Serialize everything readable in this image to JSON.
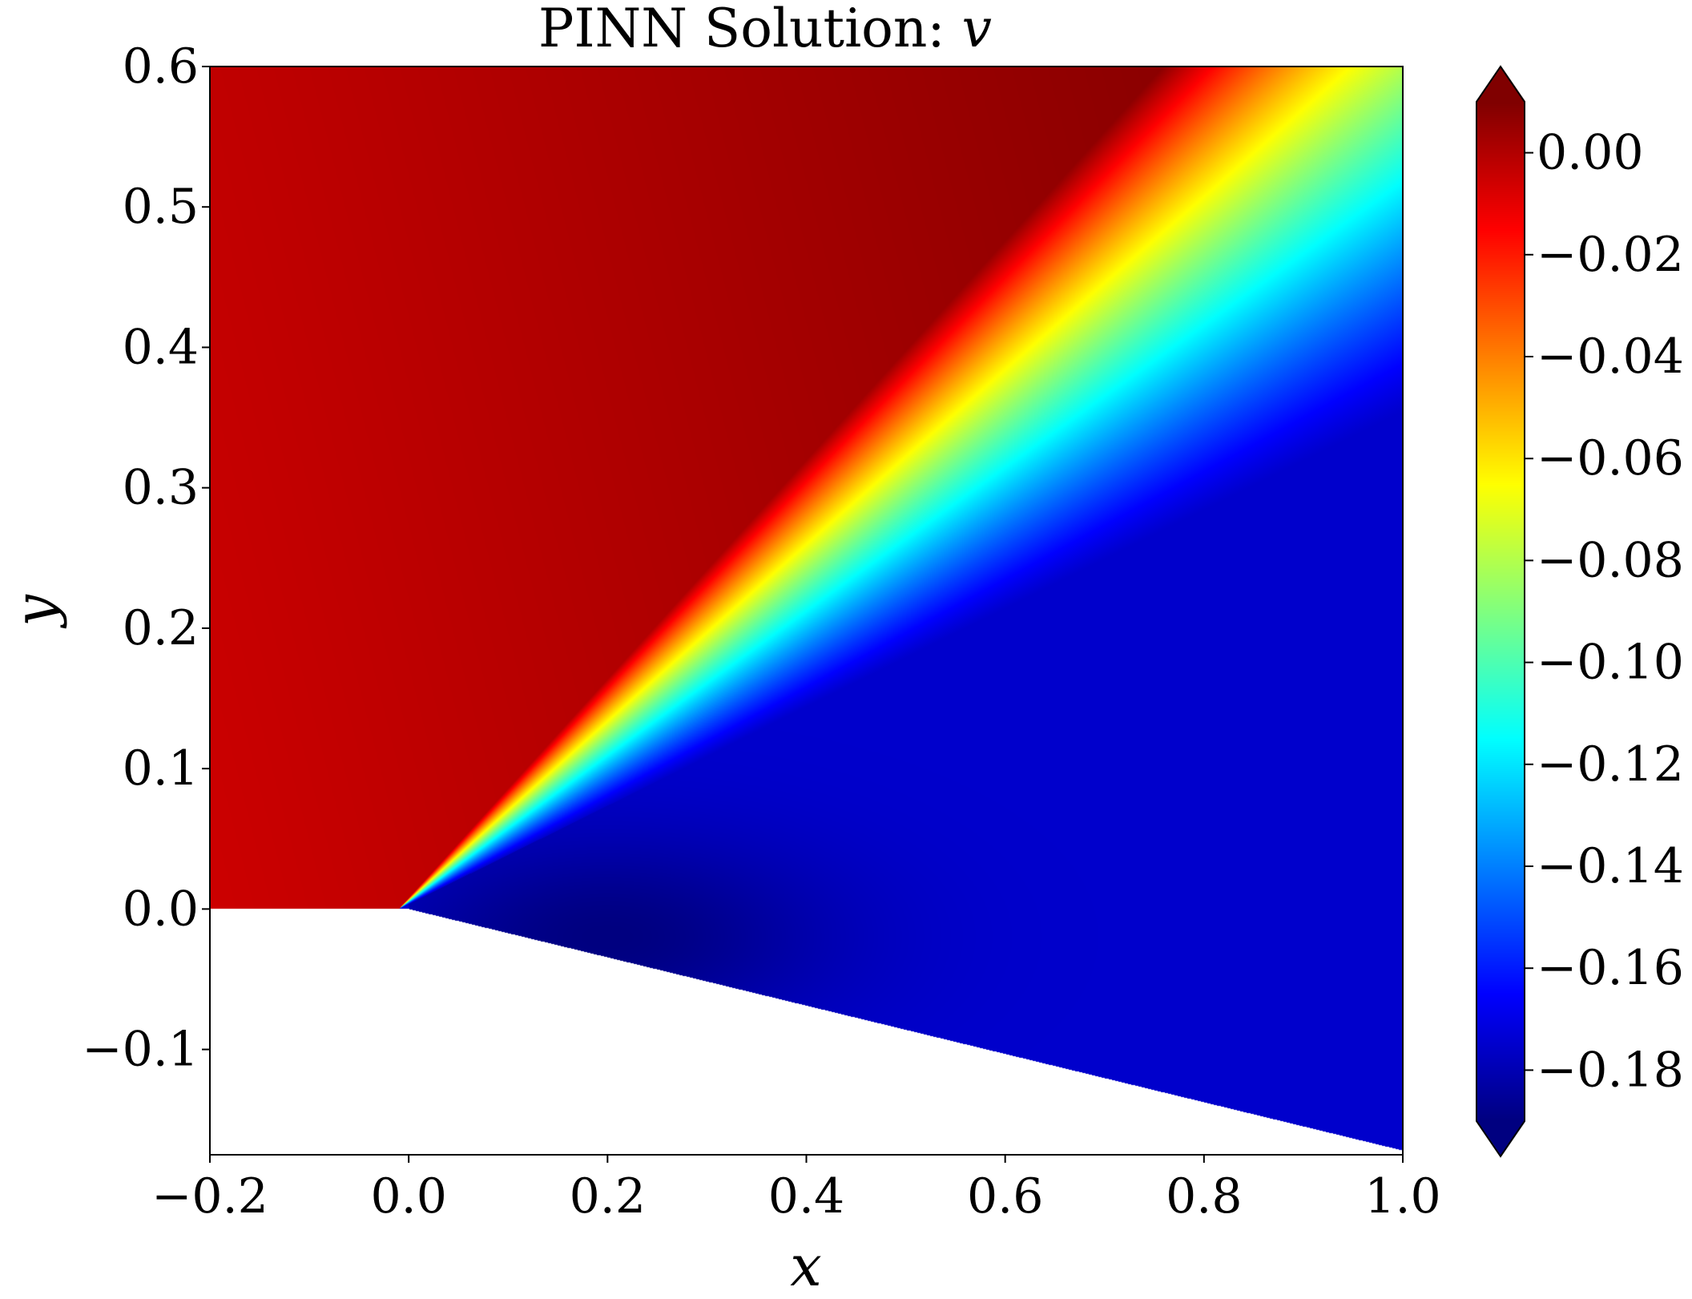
{
  "chart_data": {
    "type": "heatmap",
    "title": "PINN Solution: ",
    "title_var": "v",
    "xlabel": "x",
    "ylabel": "y",
    "xlim": [
      -0.2,
      1.0
    ],
    "ylim": [
      -0.175,
      0.6
    ],
    "xticks": [
      -0.2,
      0.0,
      0.2,
      0.4,
      0.6,
      0.8,
      1.0
    ],
    "xtick_labels": [
      "−0.2",
      "0.0",
      "0.2",
      "0.4",
      "0.6",
      "0.8",
      "1.0"
    ],
    "yticks": [
      -0.1,
      0.0,
      0.1,
      0.2,
      0.3,
      0.4,
      0.5,
      0.6
    ],
    "ytick_labels": [
      "−0.1",
      "0.0",
      "0.1",
      "0.2",
      "0.3",
      "0.4",
      "0.5",
      "0.6"
    ],
    "colormap": "jet",
    "colorbar": {
      "vmin": -0.19,
      "vmax": 0.01,
      "extend": "both",
      "ticks": [
        0.0,
        -0.02,
        -0.04,
        -0.06,
        -0.08,
        -0.1,
        -0.12,
        -0.14,
        -0.16,
        -0.18
      ],
      "tick_labels": [
        "0.00",
        "−0.02",
        "−0.04",
        "−0.06",
        "−0.08",
        "−0.10",
        "−0.12",
        "−0.14",
        "−0.16",
        "−0.18"
      ]
    },
    "domain": {
      "wedge_corner": [
        0.0,
        0.0
      ],
      "lower_boundary_end": [
        1.0,
        -0.172
      ],
      "empty_region": "below y=0 for x<0 and below the line from (0,0) to (1,-0.172)"
    },
    "field": {
      "upstream_value_left": -0.005,
      "upstream_value_right": 0.008,
      "downstream_value": -0.175,
      "downstream_min_value": -0.19,
      "shock_band_lower_slope": 0.35,
      "shock_band_upper_slope": 0.78,
      "shock_band_origin_x": -0.01
    }
  }
}
